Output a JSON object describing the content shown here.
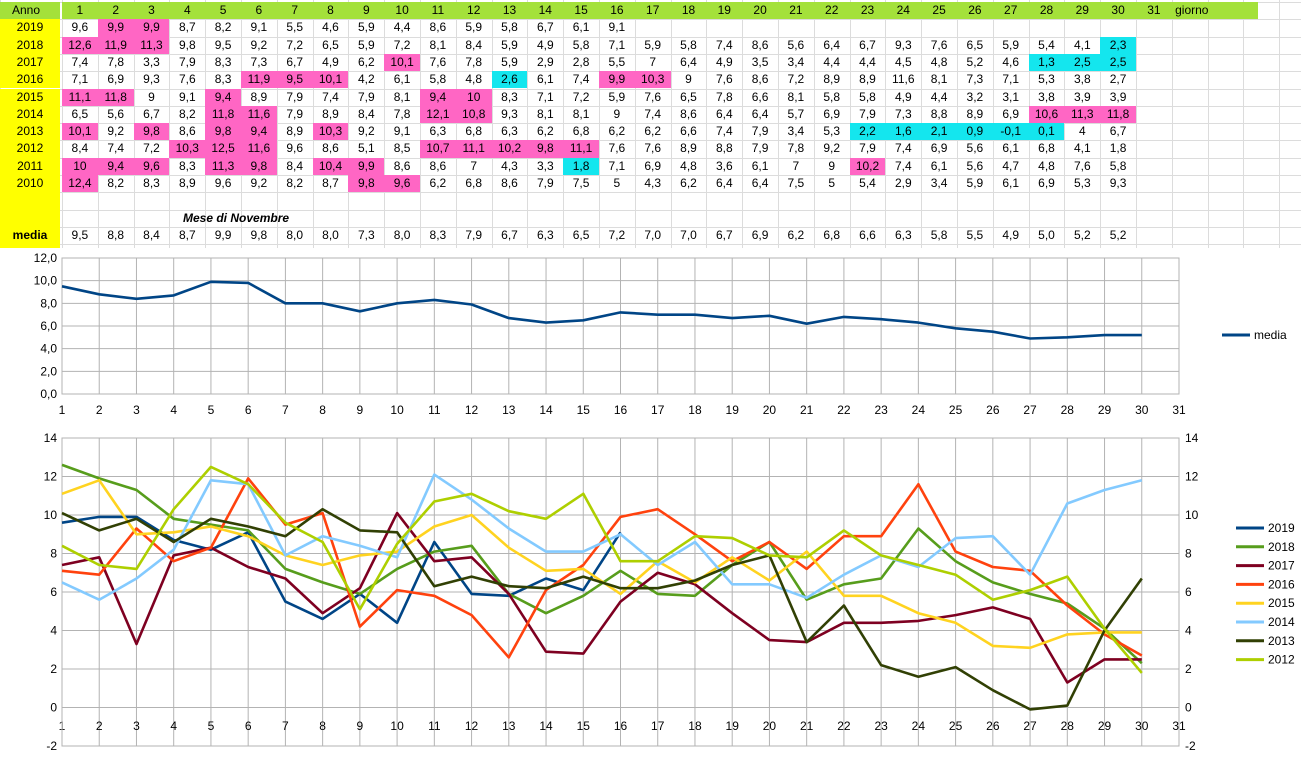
{
  "table": {
    "header_label": "Anno",
    "day_headers": [
      "1",
      "2",
      "3",
      "4",
      "5",
      "6",
      "7",
      "8",
      "9",
      "10",
      "11",
      "12",
      "13",
      "14",
      "15",
      "16",
      "17",
      "18",
      "19",
      "20",
      "21",
      "22",
      "23",
      "24",
      "25",
      "26",
      "27",
      "28",
      "29",
      "30",
      "31"
    ],
    "giorno_label": "giorno",
    "month_label": "Mese di Novembre",
    "media_label": "media",
    "rows": [
      {
        "year": "2019",
        "values": [
          "9,6",
          "9,9",
          "9,9",
          "8,7",
          "8,2",
          "9,1",
          "5,5",
          "4,6",
          "5,9",
          "4,4",
          "8,6",
          "5,9",
          "5,8",
          "6,7",
          "6,1",
          "9,1",
          "",
          "",
          "",
          "",
          "",
          "",
          "",
          "",
          "",
          "",
          "",
          "",
          "",
          ""
        ],
        "highlight": {
          "2": "pink",
          "3": "pink"
        }
      },
      {
        "year": "2018",
        "values": [
          "12,6",
          "11,9",
          "11,3",
          "9,8",
          "9,5",
          "9,2",
          "7,2",
          "6,5",
          "5,9",
          "7,2",
          "8,1",
          "8,4",
          "5,9",
          "4,9",
          "5,8",
          "7,1",
          "5,9",
          "5,8",
          "7,4",
          "8,6",
          "5,6",
          "6,4",
          "6,7",
          "9,3",
          "7,6",
          "6,5",
          "5,9",
          "5,4",
          "4,1",
          "2,3"
        ],
        "highlight": {
          "1": "pink",
          "2": "pink",
          "3": "pink",
          "30": "cyan"
        }
      },
      {
        "year": "2017",
        "values": [
          "7,4",
          "7,8",
          "3,3",
          "7,9",
          "8,3",
          "7,3",
          "6,7",
          "4,9",
          "6,2",
          "10,1",
          "7,6",
          "7,8",
          "5,9",
          "2,9",
          "2,8",
          "5,5",
          "7",
          "6,4",
          "4,9",
          "3,5",
          "3,4",
          "4,4",
          "4,4",
          "4,5",
          "4,8",
          "5,2",
          "4,6",
          "1,3",
          "2,5",
          "2,5"
        ],
        "highlight": {
          "10": "pink",
          "28": "cyan",
          "29": "cyan",
          "30": "cyan"
        }
      },
      {
        "year": "2016",
        "values": [
          "7,1",
          "6,9",
          "9,3",
          "7,6",
          "8,3",
          "11,9",
          "9,5",
          "10,1",
          "4,2",
          "6,1",
          "5,8",
          "4,8",
          "2,6",
          "6,1",
          "7,4",
          "9,9",
          "10,3",
          "9",
          "7,6",
          "8,6",
          "7,2",
          "8,9",
          "8,9",
          "11,6",
          "8,1",
          "7,3",
          "7,1",
          "5,3",
          "3,8",
          "2,7"
        ],
        "highlight": {
          "6": "pink",
          "7": "pink",
          "8": "pink",
          "13": "cyan",
          "16": "pink",
          "17": "pink"
        }
      },
      {
        "year": "2015",
        "values": [
          "11,1",
          "11,8",
          "9",
          "9,1",
          "9,4",
          "8,9",
          "7,9",
          "7,4",
          "7,9",
          "8,1",
          "9,4",
          "10",
          "8,3",
          "7,1",
          "7,2",
          "5,9",
          "7,6",
          "6,5",
          "7,8",
          "6,6",
          "8,1",
          "5,8",
          "5,8",
          "4,9",
          "4,4",
          "3,2",
          "3,1",
          "3,8",
          "3,9",
          "3,9"
        ],
        "highlight": {
          "1": "pink",
          "2": "pink",
          "5": "pink",
          "11": "pink",
          "12": "pink"
        }
      },
      {
        "year": "2014",
        "values": [
          "6,5",
          "5,6",
          "6,7",
          "8,2",
          "11,8",
          "11,6",
          "7,9",
          "8,9",
          "8,4",
          "7,8",
          "12,1",
          "10,8",
          "9,3",
          "8,1",
          "8,1",
          "9",
          "7,4",
          "8,6",
          "6,4",
          "6,4",
          "5,7",
          "6,9",
          "7,9",
          "7,3",
          "8,8",
          "8,9",
          "6,9",
          "10,6",
          "11,3",
          "11,8"
        ],
        "highlight": {
          "5": "pink",
          "6": "pink",
          "11": "pink",
          "12": "pink",
          "28": "pink",
          "29": "pink",
          "30": "pink"
        }
      },
      {
        "year": "2013",
        "values": [
          "10,1",
          "9,2",
          "9,8",
          "8,6",
          "9,8",
          "9,4",
          "8,9",
          "10,3",
          "9,2",
          "9,1",
          "6,3",
          "6,8",
          "6,3",
          "6,2",
          "6,8",
          "6,2",
          "6,2",
          "6,6",
          "7,4",
          "7,9",
          "3,4",
          "5,3",
          "2,2",
          "1,6",
          "2,1",
          "0,9",
          "-0,1",
          "0,1",
          "4",
          "6,7"
        ],
        "highlight": {
          "1": "pink",
          "3": "pink",
          "5": "pink",
          "6": "pink",
          "8": "pink",
          "23": "cyan",
          "24": "cyan",
          "25": "cyan",
          "26": "cyan",
          "27": "cyan",
          "28": "cyan"
        }
      },
      {
        "year": "2012",
        "values": [
          "8,4",
          "7,4",
          "7,2",
          "10,3",
          "12,5",
          "11,6",
          "9,6",
          "8,6",
          "5,1",
          "8,5",
          "10,7",
          "11,1",
          "10,2",
          "9,8",
          "11,1",
          "7,6",
          "7,6",
          "8,9",
          "8,8",
          "7,9",
          "7,8",
          "9,2",
          "7,9",
          "7,4",
          "6,9",
          "5,6",
          "6,1",
          "6,8",
          "4,1",
          "1,8"
        ],
        "highlight": {
          "4": "pink",
          "5": "pink",
          "6": "pink",
          "11": "pink",
          "12": "pink",
          "13": "pink",
          "14": "pink",
          "15": "pink"
        }
      },
      {
        "year": "2011",
        "values": [
          "10",
          "9,4",
          "9,6",
          "8,3",
          "11,3",
          "9,8",
          "8,4",
          "10,4",
          "9,9",
          "8,6",
          "8,6",
          "7",
          "4,3",
          "3,3",
          "1,8",
          "7,1",
          "6,9",
          "4,8",
          "3,6",
          "6,1",
          "7",
          "9",
          "10,2",
          "7,4",
          "6,1",
          "5,6",
          "4,7",
          "4,8",
          "7,6",
          "5,8"
        ],
        "highlight": {
          "1": "pink",
          "2": "pink",
          "3": "pink",
          "5": "pink",
          "6": "pink",
          "8": "pink",
          "9": "pink",
          "15": "cyan",
          "23": "pink"
        }
      },
      {
        "year": "2010",
        "values": [
          "12,4",
          "8,2",
          "8,3",
          "8,9",
          "9,6",
          "9,2",
          "8,2",
          "8,7",
          "9,8",
          "9,6",
          "6,2",
          "6,8",
          "8,6",
          "7,9",
          "7,5",
          "5",
          "4,3",
          "6,2",
          "6,4",
          "6,4",
          "7,5",
          "5",
          "5,4",
          "2,9",
          "3,4",
          "5,9",
          "6,1",
          "6,9",
          "5,3",
          "9,3"
        ],
        "highlight": {
          "1": "pink",
          "9": "pink",
          "10": "pink"
        }
      }
    ],
    "media_values": [
      "9,5",
      "8,8",
      "8,4",
      "8,7",
      "9,9",
      "9,8",
      "8,0",
      "8,0",
      "7,3",
      "8,0",
      "8,3",
      "7,9",
      "6,7",
      "6,3",
      "6,5",
      "7,2",
      "7,0",
      "7,0",
      "6,7",
      "6,9",
      "6,2",
      "6,8",
      "6,6",
      "6,3",
      "5,8",
      "5,5",
      "4,9",
      "5,0",
      "5,2",
      "5,2"
    ]
  },
  "colors": {
    "header_green": "#a4e13a",
    "year_yellow": "#ffff00",
    "pink": "#ff66c4",
    "cyan": "#14e6ee"
  },
  "chart_data": [
    {
      "type": "line",
      "x_ticks": [
        "1",
        "2",
        "3",
        "4",
        "5",
        "6",
        "7",
        "8",
        "9",
        "10",
        "11",
        "12",
        "13",
        "14",
        "15",
        "16",
        "17",
        "18",
        "19",
        "20",
        "21",
        "22",
        "23",
        "24",
        "25",
        "26",
        "27",
        "28",
        "29",
        "30",
        "31"
      ],
      "y_ticks": [
        "0,0",
        "2,0",
        "4,0",
        "6,0",
        "8,0",
        "10,0",
        "12,0"
      ],
      "ylim": [
        0,
        12
      ],
      "xlim": [
        1,
        31
      ],
      "grid": true,
      "legend_position": "right",
      "series": [
        {
          "name": "media",
          "color": "#004586",
          "x": [
            1,
            2,
            3,
            4,
            5,
            6,
            7,
            8,
            9,
            10,
            11,
            12,
            13,
            14,
            15,
            16,
            17,
            18,
            19,
            20,
            21,
            22,
            23,
            24,
            25,
            26,
            27,
            28,
            29,
            30
          ],
          "values": [
            9.5,
            8.8,
            8.4,
            8.7,
            9.9,
            9.8,
            8.0,
            8.0,
            7.3,
            8.0,
            8.3,
            7.9,
            6.7,
            6.3,
            6.5,
            7.2,
            7.0,
            7.0,
            6.7,
            6.9,
            6.2,
            6.8,
            6.6,
            6.3,
            5.8,
            5.5,
            4.9,
            5.0,
            5.2,
            5.2
          ]
        }
      ]
    },
    {
      "type": "line",
      "x_ticks": [
        "1",
        "2",
        "3",
        "4",
        "5",
        "6",
        "7",
        "8",
        "9",
        "10",
        "11",
        "12",
        "13",
        "14",
        "15",
        "16",
        "17",
        "18",
        "19",
        "20",
        "21",
        "22",
        "23",
        "24",
        "25",
        "26",
        "27",
        "28",
        "29",
        "30",
        "31"
      ],
      "y_ticks": [
        "-2",
        "0",
        "2",
        "4",
        "6",
        "8",
        "10",
        "12",
        "14"
      ],
      "y_ticks_right": [
        "-2",
        "0",
        "2",
        "4",
        "6",
        "8",
        "10",
        "12",
        "14"
      ],
      "ylim": [
        -2,
        14
      ],
      "xlim": [
        1,
        31
      ],
      "grid": true,
      "legend_position": "right",
      "series": [
        {
          "name": "2019",
          "color": "#004586",
          "x": [
            1,
            2,
            3,
            4,
            5,
            6,
            7,
            8,
            9,
            10,
            11,
            12,
            13,
            14,
            15,
            16
          ],
          "values": [
            9.6,
            9.9,
            9.9,
            8.7,
            8.2,
            9.1,
            5.5,
            4.6,
            5.9,
            4.4,
            8.6,
            5.9,
            5.8,
            6.7,
            6.1,
            9.1
          ]
        },
        {
          "name": "2018",
          "color": "#579d1c",
          "x": [
            1,
            2,
            3,
            4,
            5,
            6,
            7,
            8,
            9,
            10,
            11,
            12,
            13,
            14,
            15,
            16,
            17,
            18,
            19,
            20,
            21,
            22,
            23,
            24,
            25,
            26,
            27,
            28,
            29,
            30
          ],
          "values": [
            12.6,
            11.9,
            11.3,
            9.8,
            9.5,
            9.2,
            7.2,
            6.5,
            5.9,
            7.2,
            8.1,
            8.4,
            5.9,
            4.9,
            5.8,
            7.1,
            5.9,
            5.8,
            7.4,
            8.6,
            5.6,
            6.4,
            6.7,
            9.3,
            7.6,
            6.5,
            5.9,
            5.4,
            4.1,
            2.3
          ]
        },
        {
          "name": "2017",
          "color": "#7e0021",
          "x": [
            1,
            2,
            3,
            4,
            5,
            6,
            7,
            8,
            9,
            10,
            11,
            12,
            13,
            14,
            15,
            16,
            17,
            18,
            19,
            20,
            21,
            22,
            23,
            24,
            25,
            26,
            27,
            28,
            29,
            30
          ],
          "values": [
            7.4,
            7.8,
            3.3,
            7.9,
            8.3,
            7.3,
            6.7,
            4.9,
            6.2,
            10.1,
            7.6,
            7.8,
            5.9,
            2.9,
            2.8,
            5.5,
            7,
            6.4,
            4.9,
            3.5,
            3.4,
            4.4,
            4.4,
            4.5,
            4.8,
            5.2,
            4.6,
            1.3,
            2.5,
            2.5
          ]
        },
        {
          "name": "2016",
          "color": "#ff420e",
          "x": [
            1,
            2,
            3,
            4,
            5,
            6,
            7,
            8,
            9,
            10,
            11,
            12,
            13,
            14,
            15,
            16,
            17,
            18,
            19,
            20,
            21,
            22,
            23,
            24,
            25,
            26,
            27,
            28,
            29,
            30
          ],
          "values": [
            7.1,
            6.9,
            9.3,
            7.6,
            8.3,
            11.9,
            9.5,
            10.1,
            4.2,
            6.1,
            5.8,
            4.8,
            2.6,
            6.1,
            7.4,
            9.9,
            10.3,
            9,
            7.6,
            8.6,
            7.2,
            8.9,
            8.9,
            11.6,
            8.1,
            7.3,
            7.1,
            5.3,
            3.8,
            2.7
          ]
        },
        {
          "name": "2015",
          "color": "#ffd320",
          "x": [
            1,
            2,
            3,
            4,
            5,
            6,
            7,
            8,
            9,
            10,
            11,
            12,
            13,
            14,
            15,
            16,
            17,
            18,
            19,
            20,
            21,
            22,
            23,
            24,
            25,
            26,
            27,
            28,
            29,
            30
          ],
          "values": [
            11.1,
            11.8,
            9,
            9.1,
            9.4,
            8.9,
            7.9,
            7.4,
            7.9,
            8.1,
            9.4,
            10,
            8.3,
            7.1,
            7.2,
            5.9,
            7.6,
            6.5,
            7.8,
            6.6,
            8.1,
            5.8,
            5.8,
            4.9,
            4.4,
            3.2,
            3.1,
            3.8,
            3.9,
            3.9
          ]
        },
        {
          "name": "2014",
          "color": "#83caff",
          "x": [
            1,
            2,
            3,
            4,
            5,
            6,
            7,
            8,
            9,
            10,
            11,
            12,
            13,
            14,
            15,
            16,
            17,
            18,
            19,
            20,
            21,
            22,
            23,
            24,
            25,
            26,
            27,
            28,
            29,
            30
          ],
          "values": [
            6.5,
            5.6,
            6.7,
            8.2,
            11.8,
            11.6,
            7.9,
            8.9,
            8.4,
            7.8,
            12.1,
            10.8,
            9.3,
            8.1,
            8.1,
            9,
            7.4,
            8.6,
            6.4,
            6.4,
            5.7,
            6.9,
            7.9,
            7.3,
            8.8,
            8.9,
            6.9,
            10.6,
            11.3,
            11.8
          ]
        },
        {
          "name": "2013",
          "color": "#314004",
          "x": [
            1,
            2,
            3,
            4,
            5,
            6,
            7,
            8,
            9,
            10,
            11,
            12,
            13,
            14,
            15,
            16,
            17,
            18,
            19,
            20,
            21,
            22,
            23,
            24,
            25,
            26,
            27,
            28,
            29,
            30
          ],
          "values": [
            10.1,
            9.2,
            9.8,
            8.6,
            9.8,
            9.4,
            8.9,
            10.3,
            9.2,
            9.1,
            6.3,
            6.8,
            6.3,
            6.2,
            6.8,
            6.2,
            6.2,
            6.6,
            7.4,
            7.9,
            3.4,
            5.3,
            2.2,
            1.6,
            2.1,
            0.9,
            -0.1,
            0.1,
            4,
            6.7
          ]
        },
        {
          "name": "2012",
          "color": "#aecf00",
          "x": [
            1,
            2,
            3,
            4,
            5,
            6,
            7,
            8,
            9,
            10,
            11,
            12,
            13,
            14,
            15,
            16,
            17,
            18,
            19,
            20,
            21,
            22,
            23,
            24,
            25,
            26,
            27,
            28,
            29,
            30
          ],
          "values": [
            8.4,
            7.4,
            7.2,
            10.3,
            12.5,
            11.6,
            9.6,
            8.6,
            5.1,
            8.5,
            10.7,
            11.1,
            10.2,
            9.8,
            11.1,
            7.6,
            7.6,
            8.9,
            8.8,
            7.9,
            7.8,
            9.2,
            7.9,
            7.4,
            6.9,
            5.6,
            6.1,
            6.8,
            4.1,
            1.8
          ]
        }
      ]
    }
  ]
}
